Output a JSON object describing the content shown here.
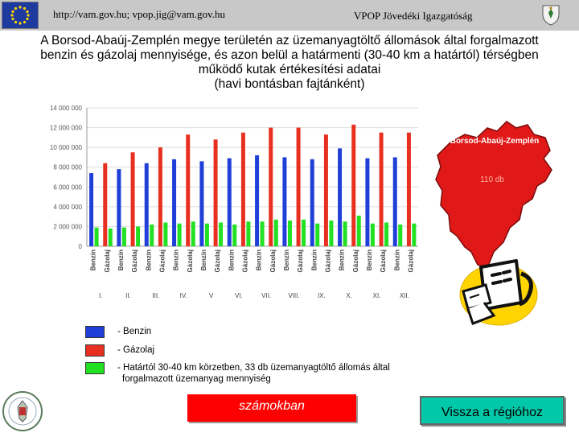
{
  "header": {
    "contact": "http://vam.gov.hu; vpop.jig@vam.gov.hu",
    "organization": "VPOP Jövedéki Igazgatóság"
  },
  "title": {
    "line1": "A Borsod-Abaúj-Zemplén megye területén az üzemanyagtöltő állomások által forgalmazott",
    "line2": "benzin és gázolaj mennyisége, és azon belül a határmenti (30-40 km a határtól) térségben",
    "line3": "működő kutak értékesítési adatai",
    "line4": "(havi bontásban fajtánként)"
  },
  "map": {
    "label": "Borsod-Abaúj-Zemplén",
    "count": "110 db"
  },
  "legend": {
    "benzin": "- Benzin",
    "gazolaj": "- Gázolaj",
    "hatarmenti_line1": "- Határtól 30-40 km körzetben, 33 db üzemanyagtöltő állomás által",
    "hatarmenti_line2": "forgalmazott üzemanyag mennyiség"
  },
  "buttons": {
    "szamokban": "számokban",
    "vissza": "Vissza a régióhoz"
  },
  "colors": {
    "benzin": "#1f3fd8",
    "gazolaj": "#e83020",
    "hatarmenti": "#22e022",
    "map": "#e01818",
    "header_bg": "#c8c8c8"
  },
  "chart_data": {
    "type": "bar",
    "ylim": [
      0,
      14000000
    ],
    "yticks": [
      "0",
      "2 000 000",
      "4 000 000",
      "6 000 000",
      "8 000 000",
      "10 000 000",
      "12 000 000",
      "14 000 000"
    ],
    "month_labels": [
      "I.",
      "II.",
      "III.",
      "IV.",
      "V",
      "VI.",
      "VII.",
      "VIII.",
      "IX.",
      "X.",
      "XI.",
      "XII."
    ],
    "bar_labels": [
      "Benzin",
      "Gázolaj",
      "Benzin",
      "Gázolaj",
      "Benzin",
      "Gázolaj",
      "Benzin",
      "Gázolaj",
      "Benzin",
      "Gázolaj",
      "Benzin",
      "Gázolaj",
      "Benzin",
      "Gázolaj",
      "Benzin",
      "Gázolaj",
      "Benzin",
      "Gázolaj",
      "Benzin",
      "Gázolaj",
      "Benzin",
      "Gázolaj",
      "Benzin",
      "Gázolaj"
    ],
    "series": [
      {
        "name": "Benzin",
        "color": "#1f3fd8",
        "values": [
          7400000,
          null,
          7800000,
          null,
          8400000,
          null,
          8800000,
          null,
          8600000,
          null,
          8900000,
          null,
          9200000,
          null,
          9000000,
          null,
          8800000,
          null,
          9900000,
          null,
          8900000,
          null,
          9000000,
          null
        ]
      },
      {
        "name": "Gázolaj",
        "color": "#e83020",
        "values": [
          null,
          8400000,
          null,
          9500000,
          null,
          10000000,
          null,
          11300000,
          null,
          10800000,
          null,
          11500000,
          null,
          12000000,
          null,
          12000000,
          null,
          11300000,
          null,
          12300000,
          null,
          11500000,
          null,
          11500000
        ]
      },
      {
        "name": "Határtól 30-40 km",
        "color": "#22e022",
        "values": [
          1900000,
          1800000,
          1900000,
          2000000,
          2200000,
          2400000,
          2300000,
          2500000,
          2300000,
          2400000,
          2200000,
          2500000,
          2500000,
          2700000,
          2600000,
          2700000,
          2300000,
          2600000,
          2500000,
          3100000,
          2300000,
          2400000,
          2200000,
          2300000
        ]
      }
    ]
  }
}
